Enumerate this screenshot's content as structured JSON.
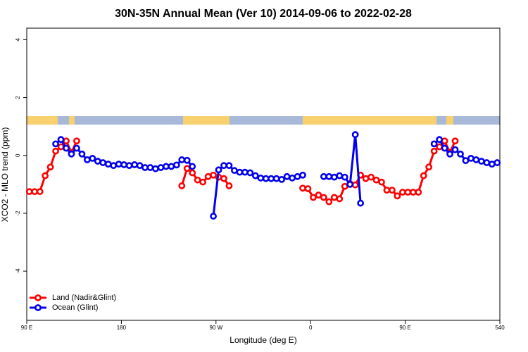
{
  "chart_data": {
    "type": "line",
    "title": "30N-35N Annual Mean (Ver 10)   2014-09-06 to 2022-02-28",
    "x_label": "Longitude (deg E)",
    "y_label": "XCO2 - MLO trend (ppm)",
    "xlim": [
      90,
      540
    ],
    "ylim": [
      -5.7,
      4.4
    ],
    "xticks": [
      {
        "value": 90,
        "label": "90 E"
      },
      180,
      {
        "value": 270,
        "label": "90 W"
      },
      {
        "value": 360,
        "label": "0"
      },
      {
        "value": 450,
        "label": "90 E"
      },
      540
    ],
    "yticks": [
      4,
      2,
      0,
      -2,
      -4
    ],
    "legend": "lower left",
    "x": [
      92.5,
      97.5,
      102.5,
      107.5,
      112.5,
      117.5,
      122.5,
      127.5,
      132.5,
      137.5,
      142.5,
      147.5,
      152.5,
      157.5,
      162.5,
      167.5,
      172.5,
      177.5,
      182.5,
      187.5,
      192.5,
      197.5,
      202.5,
      207.5,
      212.5,
      217.5,
      222.5,
      227.5,
      232.5,
      237.5,
      242.5,
      247.5,
      252.5,
      257.5,
      262.5,
      267.5,
      272.5,
      277.5,
      282.5,
      287.5,
      292.5,
      297.5,
      302.5,
      307.5,
      312.5,
      317.5,
      322.5,
      327.5,
      332.5,
      337.5,
      342.5,
      347.5,
      352.5,
      357.5,
      362.5,
      367.5,
      372.5,
      377.5,
      382.5,
      387.5,
      392.5,
      397.5,
      402.5,
      407.5,
      412.5,
      417.5,
      422.5,
      427.5,
      432.5,
      437.5,
      442.5,
      447.5,
      452.5,
      457.5,
      462.5,
      467.5,
      472.5,
      477.5,
      482.5,
      487.5,
      492.5,
      497.5,
      502.5,
      507.5,
      512.5,
      517.5,
      522.5,
      527.5,
      532.5,
      537.5
    ],
    "series": [
      {
        "name": "Land (Nadir&Glint)",
        "color": "#ff0000",
        "values": [
          -1.25,
          -1.25,
          -1.25,
          -0.7,
          -0.4,
          0.15,
          0.3,
          0.5,
          0.1,
          0.5,
          null,
          null,
          null,
          null,
          null,
          null,
          null,
          null,
          null,
          null,
          null,
          null,
          null,
          null,
          null,
          null,
          null,
          null,
          null,
          -1.05,
          -0.45,
          -0.6,
          -0.85,
          -0.92,
          -0.73,
          -0.68,
          -0.75,
          -0.8,
          -1.05,
          null,
          null,
          null,
          null,
          null,
          null,
          null,
          null,
          null,
          null,
          null,
          null,
          null,
          -1.13,
          -1.15,
          -1.45,
          -1.37,
          -1.45,
          -1.6,
          -1.45,
          -1.5,
          -1.07,
          -0.98,
          -1.02,
          -0.68,
          -0.8,
          -0.75,
          -0.85,
          -0.92,
          -1.2,
          -1.2,
          -1.4,
          -1.27,
          -1.27,
          -1.27,
          -1.27,
          -0.7,
          -0.4,
          0.15,
          0.3,
          0.5,
          0.1,
          0.5,
          null,
          null,
          null,
          null,
          null,
          null,
          null,
          null
        ]
      },
      {
        "name": "Ocean (Glint)",
        "color": "#0000ee",
        "values": [
          null,
          null,
          null,
          null,
          null,
          0.4,
          0.55,
          0.25,
          0.05,
          0.25,
          0.05,
          -0.15,
          -0.1,
          -0.2,
          -0.25,
          -0.3,
          -0.35,
          -0.3,
          -0.32,
          -0.35,
          -0.32,
          -0.35,
          -0.42,
          -0.42,
          -0.46,
          -0.42,
          -0.38,
          -0.38,
          -0.33,
          -0.15,
          -0.17,
          -0.38,
          null,
          null,
          null,
          -2.1,
          -0.5,
          -0.35,
          -0.35,
          -0.52,
          -0.58,
          -0.58,
          -0.6,
          -0.7,
          -0.78,
          -0.8,
          -0.8,
          -0.8,
          -0.83,
          -0.73,
          -0.78,
          -0.73,
          -0.68,
          null,
          null,
          null,
          -0.73,
          -0.73,
          -0.75,
          -0.7,
          -0.75,
          -1.0,
          0.72,
          -1.65,
          null,
          null,
          null,
          null,
          null,
          null,
          null,
          null,
          null,
          null,
          null,
          null,
          null,
          0.4,
          0.55,
          0.25,
          0.05,
          0.2,
          0.05,
          -0.18,
          -0.1,
          -0.15,
          -0.2,
          -0.25,
          -0.3,
          -0.25
        ]
      }
    ]
  }
}
